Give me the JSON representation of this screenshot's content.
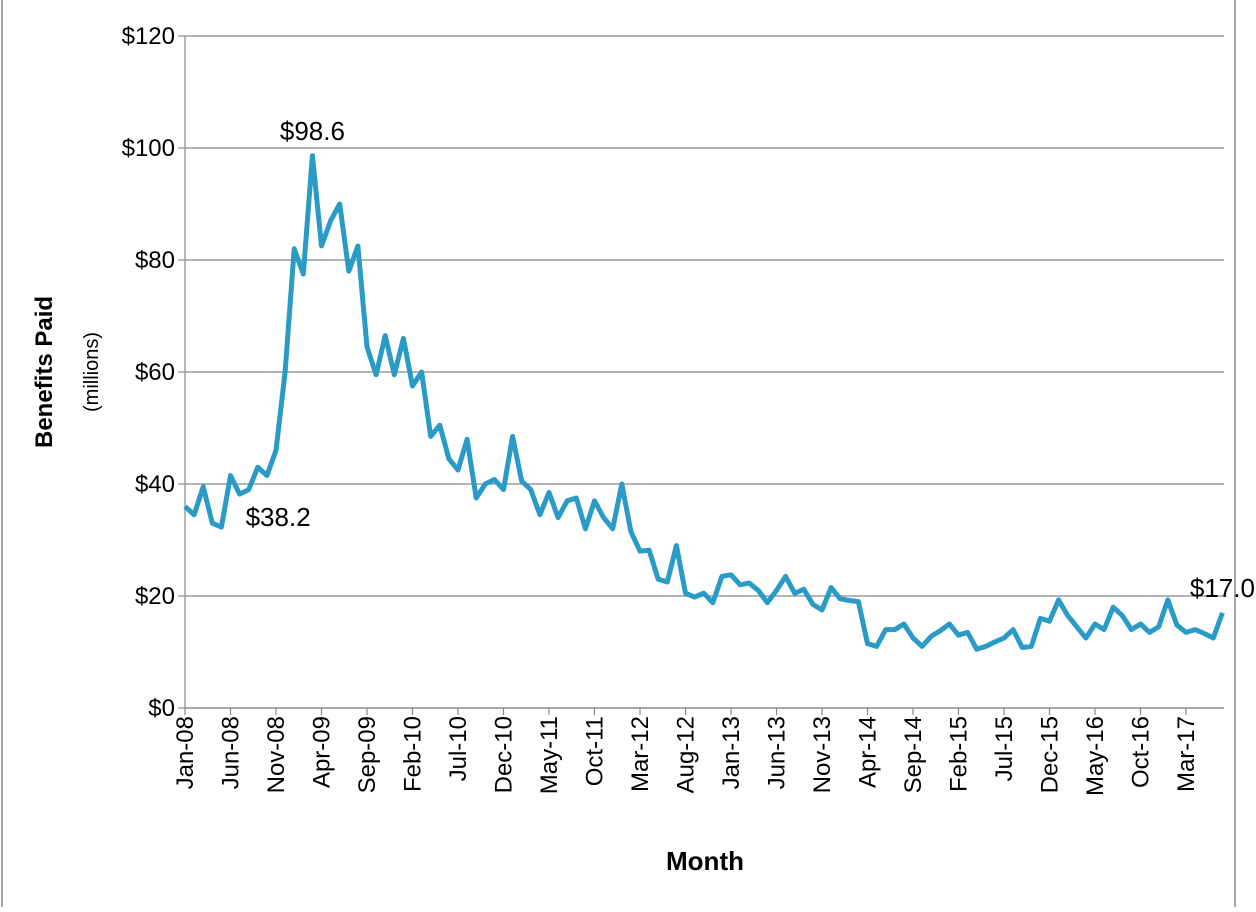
{
  "chart_data": {
    "type": "line",
    "y_label": "Benefits Paid",
    "y_sublabel": "(millions)",
    "x_label": "Month",
    "categories": [
      "Jan-08",
      null,
      null,
      null,
      null,
      "Jun-08",
      null,
      null,
      null,
      null,
      "Nov-08",
      null,
      null,
      null,
      null,
      "Apr-09",
      null,
      null,
      null,
      null,
      "Sep-09",
      null,
      null,
      null,
      null,
      "Feb-10",
      null,
      null,
      null,
      null,
      "Jul-10",
      null,
      null,
      null,
      null,
      "Dec-10",
      null,
      null,
      null,
      null,
      "May-11",
      null,
      null,
      null,
      null,
      "Oct-11",
      null,
      null,
      null,
      null,
      "Mar-12",
      null,
      null,
      null,
      null,
      "Aug-12",
      null,
      null,
      null,
      null,
      "Jan-13",
      null,
      null,
      null,
      null,
      "Jun-13",
      null,
      null,
      null,
      null,
      "Nov-13",
      null,
      null,
      null,
      null,
      "Apr-14",
      null,
      null,
      null,
      null,
      "Sep-14",
      null,
      null,
      null,
      null,
      "Feb-15",
      null,
      null,
      null,
      null,
      "Jul-15",
      null,
      null,
      null,
      null,
      "Dec-15",
      null,
      null,
      null,
      null,
      "May-16",
      null,
      null,
      null,
      null,
      "Oct-16",
      null,
      null,
      null,
      null,
      "Mar-17",
      null,
      null,
      null,
      null
    ],
    "series": [
      {
        "name": "Benefits Paid",
        "color": "#2a9ac7",
        "values": [
          36,
          34.5,
          39.5,
          33,
          32.3,
          41.5,
          38.2,
          39,
          43,
          41.5,
          46,
          60,
          82,
          77.5,
          98.6,
          82.5,
          87,
          90,
          78,
          82.5,
          64.5,
          59.5,
          66.5,
          59.5,
          66,
          57.5,
          60,
          48.5,
          50.5,
          44.5,
          42.5,
          48,
          37.5,
          40,
          40.8,
          39,
          48.5,
          40.5,
          39,
          34.5,
          38.5,
          34,
          37,
          37.5,
          32,
          37,
          34,
          32,
          40,
          31.5,
          28,
          28.2,
          23,
          22.5,
          29,
          20.5,
          19.8,
          20.5,
          18.8,
          23.5,
          23.8,
          22,
          22.3,
          21,
          18.8,
          21,
          23.5,
          20.5,
          21.2,
          18.5,
          17.5,
          21.5,
          19.5,
          19.2,
          19,
          11.5,
          11,
          14,
          14,
          15,
          12.5,
          11,
          12.8,
          13.8,
          15,
          13,
          13.5,
          10.5,
          11,
          11.8,
          12.5,
          14,
          10.8,
          11,
          16,
          15.5,
          19.3,
          16.5,
          14.5,
          12.5,
          15,
          14,
          18,
          16.5,
          14,
          15,
          13.5,
          14.5,
          19.3,
          14.8,
          13.5,
          14,
          13.3,
          12.5,
          17
        ],
        "value_labels": [
          null,
          null,
          null,
          null,
          null,
          null,
          "$38.2",
          null,
          null,
          null,
          null,
          null,
          null,
          null,
          "$98.6",
          null,
          null,
          null,
          null,
          null,
          null,
          null,
          null,
          null,
          null,
          null,
          null,
          null,
          null,
          null,
          null,
          null,
          null,
          null,
          null,
          null,
          null,
          null,
          null,
          null,
          null,
          null,
          null,
          null,
          null,
          null,
          null,
          null,
          null,
          null,
          null,
          null,
          null,
          null,
          null,
          null,
          null,
          null,
          null,
          null,
          null,
          null,
          null,
          null,
          null,
          null,
          null,
          null,
          null,
          null,
          null,
          null,
          null,
          null,
          null,
          null,
          null,
          null,
          null,
          null,
          null,
          null,
          null,
          null,
          null,
          null,
          null,
          null,
          null,
          null,
          null,
          null,
          null,
          null,
          null,
          null,
          null,
          null,
          null,
          null,
          null,
          null,
          null,
          null,
          null,
          null,
          null,
          null,
          null,
          null,
          null,
          null,
          null,
          null,
          "$17.0"
        ]
      }
    ],
    "ylim": [
      0,
      120
    ],
    "yticks": [
      {
        "value": 0,
        "label": "$0"
      },
      {
        "value": 20,
        "label": "$20"
      },
      {
        "value": 40,
        "label": "$40"
      },
      {
        "value": 60,
        "label": "$60"
      },
      {
        "value": 80,
        "label": "$80"
      },
      {
        "value": 100,
        "label": "$100"
      },
      {
        "value": 120,
        "label": "$120"
      }
    ],
    "grid": true
  }
}
